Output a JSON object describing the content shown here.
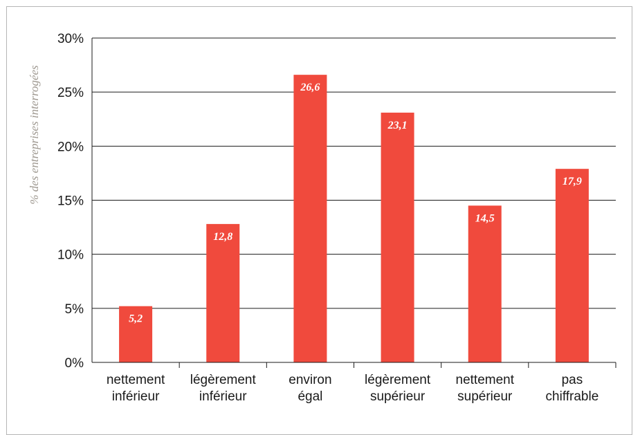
{
  "chart_data": {
    "type": "bar",
    "categories": [
      [
        "nettement",
        "inférieur"
      ],
      [
        "légèrement",
        "inférieur"
      ],
      [
        "environ",
        "égal"
      ],
      [
        "légèrement",
        "supérieur"
      ],
      [
        "nettement",
        "supérieur"
      ],
      [
        "pas",
        "chiffrable"
      ]
    ],
    "values": [
      5.2,
      12.8,
      26.6,
      23.1,
      14.5,
      17.9
    ],
    "data_labels": [
      "5,2",
      "12,8",
      "26,6",
      "23,1",
      "14,5",
      "17,9"
    ],
    "ylabel": "% des entreprises interrogées",
    "yticks": [
      "0%",
      "5%",
      "10%",
      "15%",
      "20%",
      "25%",
      "30%"
    ],
    "ylim": [
      0,
      30
    ],
    "grid": true,
    "bar_color": "#f04a3d"
  }
}
